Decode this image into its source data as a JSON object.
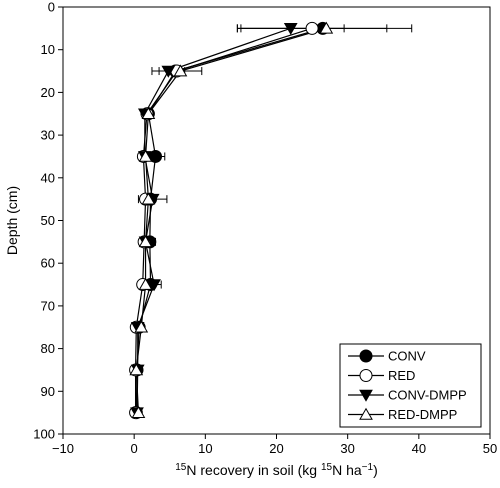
{
  "chart_data": {
    "type": "line",
    "orientation": "depth-profile",
    "xlabel": {
      "pre": "",
      "sup1": "15",
      "mid": "N recovery in soil (kg ",
      "sup2": "15",
      "mid2": "N ha",
      "sup3": "−1",
      "post": ")"
    },
    "ylabel": "Depth (cm)",
    "xlim": [
      -10,
      50
    ],
    "ylim": [
      0,
      100
    ],
    "y_inverted": true,
    "x_ticks": [
      "−10",
      "0",
      "10",
      "20",
      "30",
      "40",
      "50"
    ],
    "y_ticks": [
      "0",
      "10",
      "20",
      "30",
      "40",
      "50",
      "60",
      "70",
      "80",
      "90",
      "100"
    ],
    "grid": false,
    "legend_position": "bottom-right",
    "depths": [
      5,
      15,
      25,
      35,
      45,
      55,
      65,
      75,
      85,
      95
    ],
    "series": [
      {
        "name": "CONV",
        "marker": "filled-circle",
        "x": [
          26.5,
          5.8,
          2.0,
          3.0,
          2.3,
          2.2,
          2.3,
          0.7,
          0.4,
          0.3
        ],
        "err": [
          0,
          0,
          0,
          1.3,
          0,
          0.8,
          0,
          0,
          0,
          0
        ]
      },
      {
        "name": "RED",
        "marker": "open-circle",
        "x": [
          25.0,
          6.0,
          1.8,
          1.3,
          1.6,
          1.4,
          1.2,
          0.3,
          0.2,
          0.2
        ],
        "err": [
          10.5,
          0,
          0,
          0,
          0,
          0,
          0,
          0,
          0,
          0
        ]
      },
      {
        "name": "CONV-DMPP",
        "marker": "filled-triangle-down",
        "x": [
          22.0,
          4.8,
          1.5,
          1.5,
          2.6,
          1.6,
          2.8,
          0.5,
          0.5,
          0.4
        ],
        "err": [
          7.5,
          2.3,
          0,
          0,
          2.0,
          0,
          1.0,
          0,
          0,
          0
        ]
      },
      {
        "name": "RED-DMPP",
        "marker": "open-triangle-up",
        "x": [
          27.0,
          6.5,
          2.0,
          1.6,
          2.0,
          1.6,
          1.6,
          1.0,
          0.3,
          0.6
        ],
        "err": [
          12.0,
          3.0,
          0,
          0,
          0,
          0,
          0,
          0,
          0,
          0
        ]
      }
    ]
  }
}
